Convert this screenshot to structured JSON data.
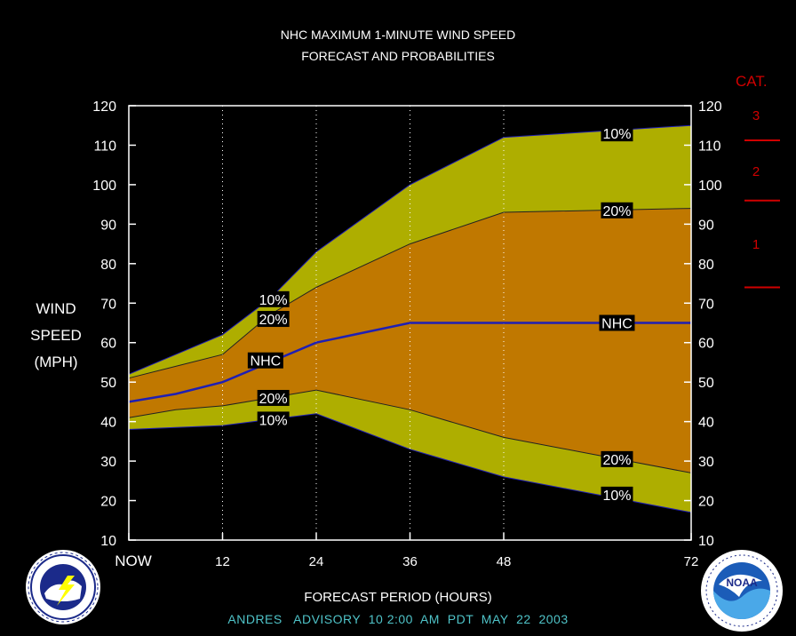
{
  "header": {
    "title_line1": "NHC MAXIMUM 1-MINUTE WIND SPEED",
    "title_line2": "FORECAST AND PROBABILITIES"
  },
  "axis": {
    "ylabel_line1": "WIND",
    "ylabel_line2": "SPEED",
    "ylabel_line3": "(MPH)",
    "xlabel": "FORECAST PERIOD (HOURS)"
  },
  "footer": {
    "text": "ANDRES   ADVISORY  10 2:00  AM  PDT  MAY  22  2003"
  },
  "categories_legend": {
    "title": "CAT.",
    "items": [
      {
        "label": "3",
        "threshold": 111
      },
      {
        "label": "2",
        "threshold": 96
      },
      {
        "label": "1",
        "threshold": 74
      }
    ],
    "color": "#d00000"
  },
  "logos": {
    "left": "nws-logo",
    "right": "noaa-logo"
  },
  "chart_data": {
    "type": "area",
    "x": [
      0,
      6,
      12,
      18,
      24,
      36,
      48,
      72
    ],
    "x_tick_values": [
      0,
      12,
      24,
      36,
      48,
      72
    ],
    "x_tick_labels": [
      "NOW",
      "12",
      "24",
      "36",
      "48",
      "72"
    ],
    "xlim": [
      0,
      72
    ],
    "ylim": [
      10,
      120
    ],
    "y_ticks": [
      10,
      20,
      30,
      40,
      50,
      60,
      70,
      80,
      90,
      100,
      110,
      120
    ],
    "grid": "vertical dotted at forecast hours",
    "series": [
      {
        "name": "10%",
        "position": "upper",
        "values": [
          52,
          57,
          62,
          71,
          83,
          100,
          112,
          115
        ]
      },
      {
        "name": "20%",
        "position": "upper",
        "values": [
          51,
          54,
          57,
          67,
          74,
          85,
          93,
          94
        ]
      },
      {
        "name": "NHC",
        "values": [
          45,
          47,
          50,
          55,
          60,
          65,
          65,
          65
        ]
      },
      {
        "name": "20%",
        "position": "lower",
        "values": [
          41,
          43,
          44,
          46,
          48,
          43,
          36,
          27
        ]
      },
      {
        "name": "10%",
        "position": "lower",
        "values": [
          38,
          38.5,
          39,
          40.5,
          42,
          33,
          26,
          17
        ]
      }
    ],
    "labels": [
      {
        "text": "10%",
        "x": 18.5,
        "y": 71
      },
      {
        "text": "20%",
        "x": 18.5,
        "y": 66
      },
      {
        "text": "NHC",
        "x": 17.5,
        "y": 55.5
      },
      {
        "text": "20%",
        "x": 18.5,
        "y": 46
      },
      {
        "text": "10%",
        "x": 18.5,
        "y": 40.5
      },
      {
        "text": "10%",
        "x": 62.5,
        "y": 113
      },
      {
        "text": "20%",
        "x": 62.5,
        "y": 93.5
      },
      {
        "text": "NHC",
        "x": 62.5,
        "y": 65
      },
      {
        "text": "20%",
        "x": 62.5,
        "y": 30.5
      },
      {
        "text": "10%",
        "x": 62.5,
        "y": 21.5
      }
    ],
    "colors": {
      "band10": "#aeae00",
      "band20": "#c07800",
      "nhc_line": "#1f1fb4",
      "outline": "#1f1fb4",
      "frame": "#ffffff"
    }
  }
}
